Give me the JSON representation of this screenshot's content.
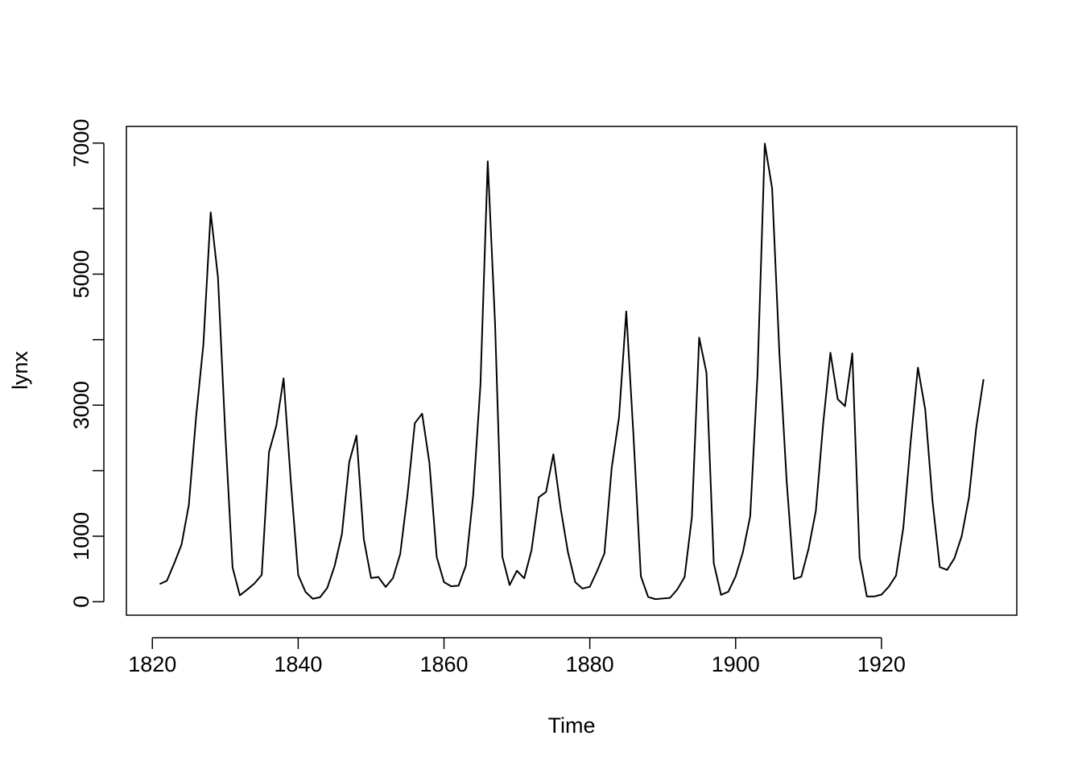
{
  "chart_data": {
    "type": "line",
    "title": "",
    "xlabel": "Time",
    "ylabel": "lynx",
    "xlim": [
      1816.44,
      1938.56
    ],
    "ylim": [
      -205.32,
      7254.32
    ],
    "x_ticks": [
      1820,
      1840,
      1860,
      1880,
      1900,
      1920
    ],
    "y_ticks": [
      0,
      1000,
      3000,
      5000,
      7000
    ],
    "grid": false,
    "legend": "none",
    "line_color": "#000000",
    "series": [
      {
        "x_start": 1821,
        "x_step": 1,
        "values": [
          269,
          321,
          585,
          871,
          1475,
          2821,
          3928,
          5943,
          4950,
          2577,
          523,
          98,
          184,
          279,
          409,
          2285,
          2685,
          3409,
          1824,
          409,
          151,
          45,
          68,
          213,
          546,
          1033,
          2129,
          2536,
          957,
          361,
          377,
          225,
          360,
          731,
          1638,
          2725,
          2871,
          2119,
          684,
          299,
          236,
          245,
          552,
          1623,
          3311,
          6721,
          4254,
          687,
          255,
          473,
          358,
          784,
          1594,
          1676,
          2251,
          1426,
          756,
          299,
          201,
          229,
          469,
          736,
          2042,
          2811,
          4431,
          2511,
          389,
          73,
          39,
          49,
          59,
          188,
          377,
          1292,
          4031,
          3495,
          587,
          105,
          153,
          387,
          758,
          1307,
          3465,
          6991,
          6313,
          3794,
          1836,
          345,
          382,
          808,
          1388,
          2713,
          3800,
          3091,
          2985,
          3790,
          674,
          81,
          80,
          108,
          229,
          399,
          1132,
          2432,
          3574,
          2935,
          1537,
          529,
          485,
          662,
          1000,
          1590,
          2657,
          3396
        ]
      }
    ]
  }
}
